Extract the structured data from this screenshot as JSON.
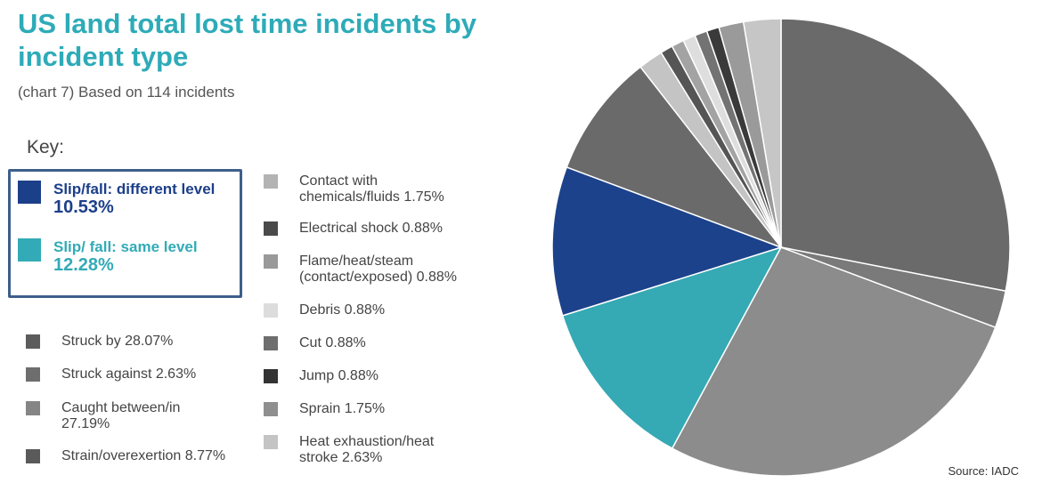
{
  "title": "US land total lost time incidents by incident type",
  "subtitle": "(chart 7) Based on 114 incidents",
  "key_label": "Key:",
  "source": "Source: IADC",
  "highlight": [
    {
      "label": "Slip/fall: different level",
      "pct": "10.53%",
      "color": "#1c3f8a"
    },
    {
      "label": "Slip/ fall: same level",
      "pct": "12.28%",
      "color": "#32abb6"
    }
  ],
  "legend_col1": [
    {
      "label": "Struck by 28.07%",
      "color": "#5c5c5c"
    },
    {
      "label": "Struck against 2.63%",
      "color": "#6e6e6e"
    },
    {
      "label": "Caught between/in 27.19%",
      "color": "#858585"
    },
    {
      "label": "Strain/overexertion 8.77%",
      "color": "#5a5a5a"
    }
  ],
  "legend_col2": [
    {
      "label": "Contact with chemicals/fluids 1.75%",
      "color": "#b3b3b3"
    },
    {
      "label": "Electrical shock 0.88%",
      "color": "#4a4a4a"
    },
    {
      "label": "Flame/heat/steam (contact/exposed) 0.88%",
      "color": "#999999"
    },
    {
      "label": "Debris 0.88%",
      "color": "#dcdcdc"
    },
    {
      "label": "Cut 0.88%",
      "color": "#6e6e6e"
    },
    {
      "label": "Jump 0.88%",
      "color": "#333333"
    },
    {
      "label": "Sprain 1.75%",
      "color": "#8f8f8f"
    },
    {
      "label": "Heat exhaustion/heat stroke 2.63%",
      "color": "#c4c4c4"
    }
  ],
  "chart_data": {
    "type": "pie",
    "title": "US land total lost time incidents by incident type",
    "subtitle": "(chart 7) Based on 114 incidents",
    "start": "12 o'clock, clockwise",
    "slices": [
      {
        "label": "Struck by",
        "value": 28.07,
        "color": "#6a6a6a"
      },
      {
        "label": "Struck against",
        "value": 2.63,
        "color": "#7a7a7a"
      },
      {
        "label": "Caught between/in",
        "value": 27.19,
        "color": "#8c8c8c"
      },
      {
        "label": "Slip/ fall: same level",
        "value": 12.28,
        "color": "#35a9b4"
      },
      {
        "label": "Slip/fall: different level",
        "value": 10.53,
        "color": "#1c428b"
      },
      {
        "label": "Strain/overexertion",
        "value": 8.77,
        "color": "#6a6a6a"
      },
      {
        "label": "Contact with chemicals/fluids",
        "value": 1.75,
        "color": "#c4c4c4"
      },
      {
        "label": "Electrical shock",
        "value": 0.88,
        "color": "#555555"
      },
      {
        "label": "Flame/heat/steam (contact/exposed)",
        "value": 0.88,
        "color": "#a3a3a3"
      },
      {
        "label": "Debris",
        "value": 0.88,
        "color": "#dedede"
      },
      {
        "label": "Cut",
        "value": 0.88,
        "color": "#737373"
      },
      {
        "label": "Jump",
        "value": 0.88,
        "color": "#3a3a3a"
      },
      {
        "label": "Sprain",
        "value": 1.75,
        "color": "#9a9a9a"
      },
      {
        "label": "Heat exhaustion/heat stroke",
        "value": 2.63,
        "color": "#c6c6c6"
      }
    ]
  }
}
